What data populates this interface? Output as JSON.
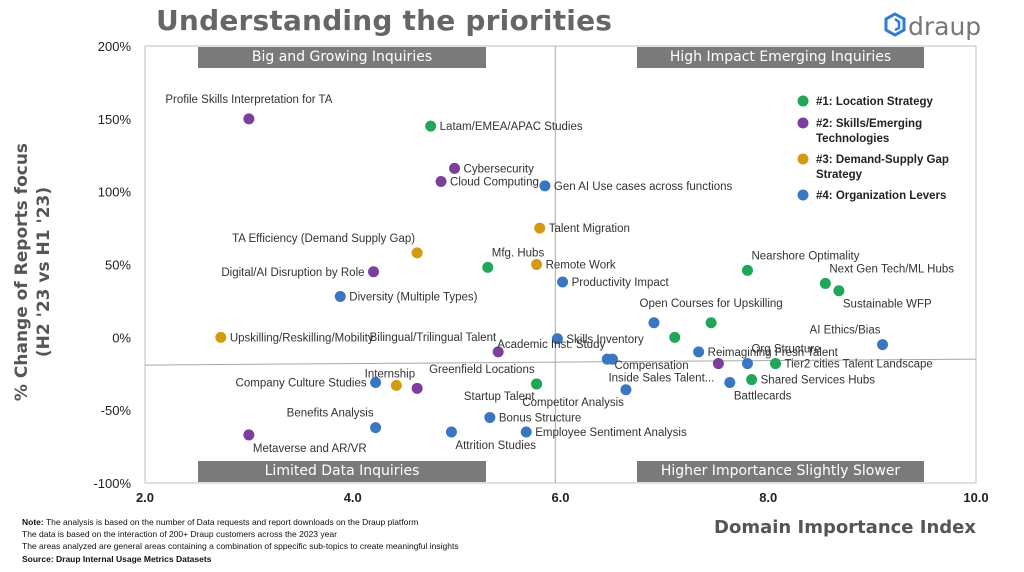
{
  "title": "Understanding the priorities",
  "logo_text": "draup",
  "notes": {
    "note_label": "Note:",
    "note_text": "The analysis is based on the number of Data requests and report downloads on the Draup platform",
    "line2": "The data is based on the interaction of 200+ Draup customers across the 2023 year",
    "line3": "The areas analyzed are general areas containing a combination of sppecific sub-topics to create meaningful insights",
    "source": "Source: Draup Internal Usage Metrics Datasets"
  },
  "quadrants": {
    "top_left": "Big and Growing Inquiries",
    "top_right": "High Impact Emerging Inquiries",
    "bottom_left": "Limited Data Inquiries",
    "bottom_right": "Higher Importance Slightly Slower"
  },
  "colors": {
    "location": "#1fa657",
    "skills": "#7b3f9e",
    "demand": "#d49a12",
    "org": "#3a77c2"
  },
  "chart_data": {
    "type": "scatter",
    "xlabel": "Domain Importance Index",
    "ylabel": "% Change of Reports focus",
    "ylabel2": "(H2 '23 vs H1 '23)",
    "xlim": [
      2.0,
      10.0
    ],
    "ylim": [
      -100,
      200
    ],
    "xticks": [
      "2.0",
      "4.0",
      "6.0",
      "8.0",
      "10.0"
    ],
    "xtick_values": [
      2,
      4,
      6,
      8,
      10
    ],
    "yticks": [
      "200%",
      "150%",
      "100%",
      "50%",
      "0%",
      "-50%",
      "-100%"
    ],
    "ytick_values": [
      200,
      150,
      100,
      50,
      0,
      -50,
      -100
    ],
    "divider_x": 5.95,
    "divider_y": -17,
    "legend": [
      {
        "key": "location",
        "label": [
          "#1: Location Strategy"
        ]
      },
      {
        "key": "skills",
        "label": [
          "#2: Skills/Emerging",
          "Technologies"
        ]
      },
      {
        "key": "demand",
        "label": [
          "#3: Demand-Supply Gap",
          "Strategy"
        ]
      },
      {
        "key": "org",
        "label": [
          "#4: Organization Levers"
        ]
      }
    ],
    "points": [
      {
        "label": "Profile Skills Interpretation for TA",
        "x": 3.0,
        "y": 150,
        "cat": "skills",
        "pos": "above"
      },
      {
        "label": "Latam/EMEA/APAC Studies",
        "x": 4.75,
        "y": 145,
        "cat": "location",
        "pos": "right"
      },
      {
        "label": "Cybersecurity",
        "x": 4.98,
        "y": 116,
        "cat": "skills",
        "pos": "right"
      },
      {
        "label": "Cloud Computing",
        "x": 4.85,
        "y": 107,
        "cat": "skills",
        "pos": "right"
      },
      {
        "label": "Gen AI Use cases across functions",
        "x": 5.85,
        "y": 104,
        "cat": "org",
        "pos": "right"
      },
      {
        "label": "Talent Migration",
        "x": 5.8,
        "y": 75,
        "cat": "demand",
        "pos": "right"
      },
      {
        "label": "TA Efficiency (Demand Supply Gap)",
        "x": 4.62,
        "y": 58,
        "cat": "demand",
        "pos": "above-left"
      },
      {
        "label": "Mfg. Hubs",
        "x": 5.3,
        "y": 48,
        "cat": "location",
        "pos": "above-right"
      },
      {
        "label": "Digital/AI Disruption by Role",
        "x": 4.2,
        "y": 45,
        "cat": "skills",
        "pos": "left"
      },
      {
        "label": "Remote Work",
        "x": 5.77,
        "y": 50,
        "cat": "demand",
        "pos": "right"
      },
      {
        "label": "Productivity Impact",
        "x": 6.02,
        "y": 38,
        "cat": "org",
        "pos": "right"
      },
      {
        "label": "Diversity (Multiple Types)",
        "x": 3.88,
        "y": 28,
        "cat": "org",
        "pos": "right"
      },
      {
        "label": "Nearshore Optimality",
        "x": 7.8,
        "y": 46,
        "cat": "location",
        "pos": "above-right"
      },
      {
        "label": "Next Gen Tech/ML Hubs",
        "x": 8.55,
        "y": 37,
        "cat": "location",
        "pos": "above-right"
      },
      {
        "label": "Sustainable WFP",
        "x": 8.68,
        "y": 32,
        "cat": "location",
        "pos": "below-right"
      },
      {
        "label": "Open Courses for Upskilling",
        "x": 7.45,
        "y": 10,
        "cat": "location",
        "pos": "above"
      },
      {
        "label": "Upskilling/Reskilling/Mobility",
        "x": 2.73,
        "y": 0,
        "cat": "demand",
        "pos": "right"
      },
      {
        "label": "Bilingual/Trilingual Talent",
        "x": 5.4,
        "y": -10,
        "cat": "skills",
        "pos": "above-left"
      },
      {
        "label": "Skills Inventory",
        "x": 5.97,
        "y": -1,
        "cat": "org",
        "pos": "right"
      },
      {
        "label": "",
        "x": 6.9,
        "y": 10,
        "cat": "org",
        "pos": "none"
      },
      {
        "label": "",
        "x": 7.1,
        "y": 0,
        "cat": "location",
        "pos": "none"
      },
      {
        "label": "AI Ethics/Bias",
        "x": 9.1,
        "y": -5,
        "cat": "org",
        "pos": "above-left"
      },
      {
        "label": "Reimagining Fresh Talent",
        "x": 7.33,
        "y": -10,
        "cat": "org",
        "pos": "right"
      },
      {
        "label": "Academic Inst. Study",
        "x": 6.45,
        "y": -15,
        "cat": "org",
        "pos": "above-left"
      },
      {
        "label": "Compensation",
        "x": 6.5,
        "y": -15,
        "cat": "org",
        "pos": "right-low"
      },
      {
        "label": "Org Structure",
        "x": 7.8,
        "y": -18,
        "cat": "org",
        "pos": "above-right"
      },
      {
        "label": "Tier2 cities Talent Landscape",
        "x": 8.07,
        "y": -18,
        "cat": "location",
        "pos": "right"
      },
      {
        "label": "Inside Sales Talent...",
        "x": 7.52,
        "y": -18,
        "cat": "skills",
        "pos": "left-low"
      },
      {
        "label": "Internship",
        "x": 4.62,
        "y": -35,
        "cat": "skills",
        "pos": "above-left"
      },
      {
        "label": "Company Culture Studies",
        "x": 4.22,
        "y": -31,
        "cat": "org",
        "pos": "left"
      },
      {
        "label": "",
        "x": 4.42,
        "y": -33,
        "cat": "demand",
        "pos": "none"
      },
      {
        "label": "Greenfield Locations",
        "x": 5.77,
        "y": -32,
        "cat": "location",
        "pos": "above-left"
      },
      {
        "label": "Startup Talent",
        "x": 5.77,
        "y": -32,
        "cat": "location",
        "pos": "below-left"
      },
      {
        "label": "Competitor Analysis",
        "x": 6.63,
        "y": -36,
        "cat": "org",
        "pos": "below-left"
      },
      {
        "label": "Battlecards",
        "x": 7.63,
        "y": -31,
        "cat": "org",
        "pos": "below-right"
      },
      {
        "label": "Shared Services Hubs",
        "x": 7.84,
        "y": -29,
        "cat": "location",
        "pos": "right"
      },
      {
        "label": "Benefits Analysis",
        "x": 4.22,
        "y": -62,
        "cat": "org",
        "pos": "above-left"
      },
      {
        "label": "Bonus Structure",
        "x": 5.32,
        "y": -55,
        "cat": "org",
        "pos": "right"
      },
      {
        "label": "Attrition Studies",
        "x": 4.95,
        "y": -65,
        "cat": "org",
        "pos": "below-right"
      },
      {
        "label": "Employee Sentiment Analysis",
        "x": 5.67,
        "y": -65,
        "cat": "org",
        "pos": "right"
      },
      {
        "label": "Metaverse and AR/VR",
        "x": 3.0,
        "y": -67,
        "cat": "skills",
        "pos": "below-right"
      }
    ]
  }
}
